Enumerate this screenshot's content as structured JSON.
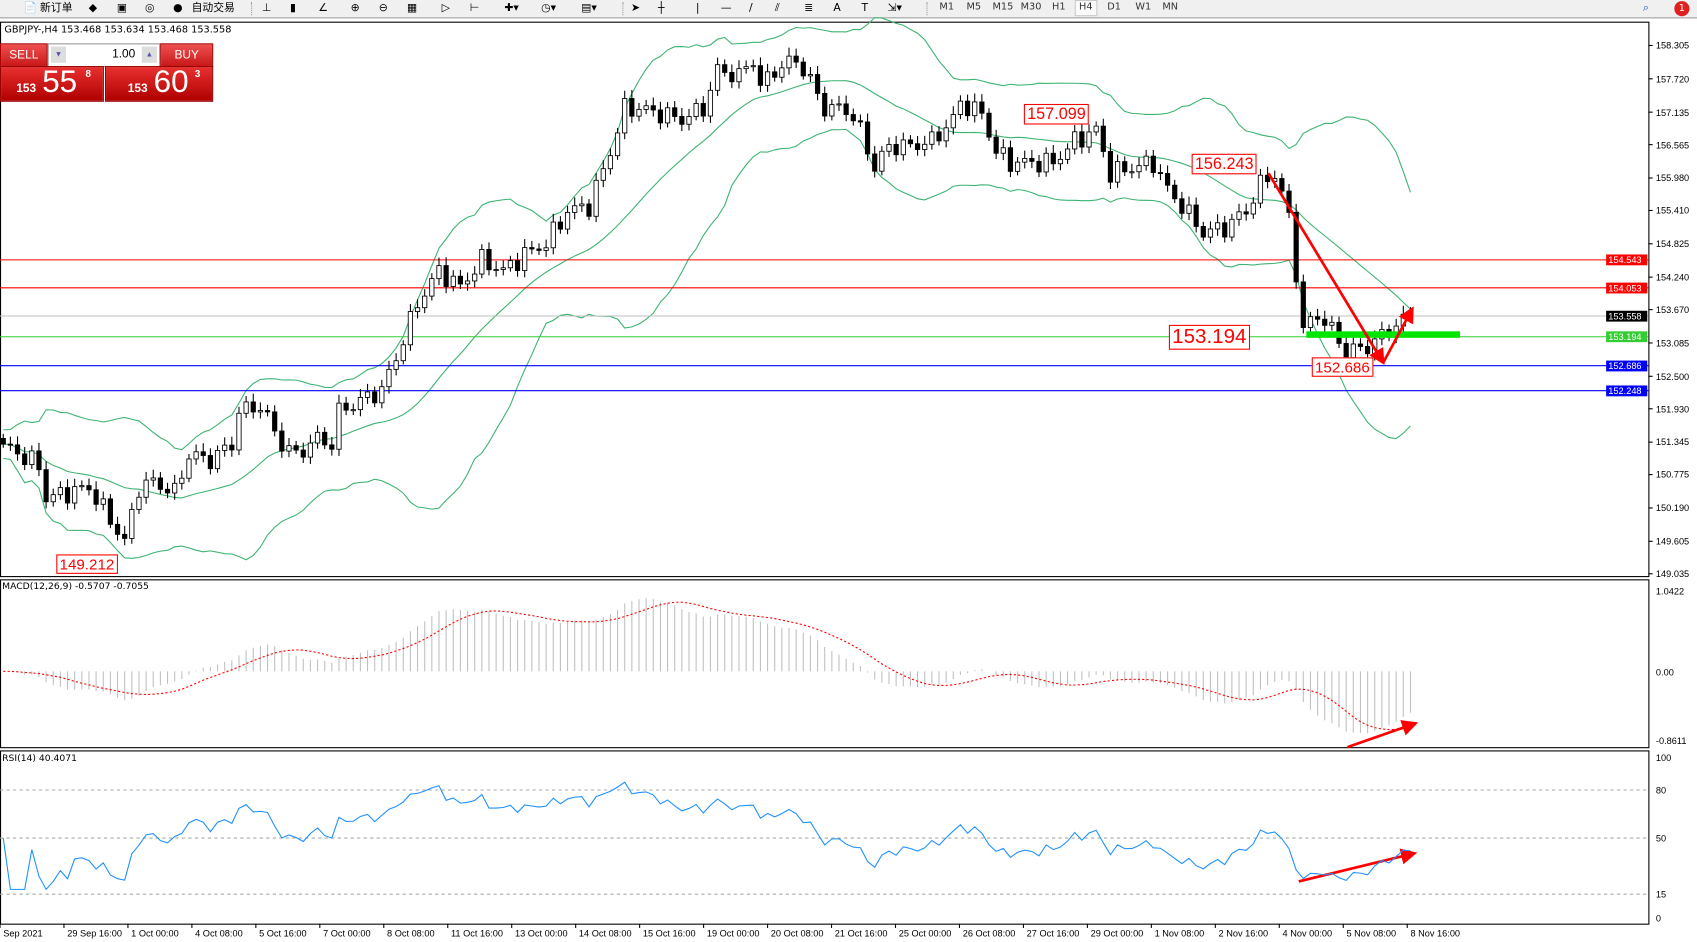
{
  "toolbar": {
    "new_order": "新订单",
    "auto_trading": "自动交易",
    "timeframes": [
      "M1",
      "M5",
      "M15",
      "M30",
      "H1",
      "H4",
      "D1",
      "W1",
      "MN"
    ],
    "active_timeframe": "H4",
    "notification_count": "1"
  },
  "chart": {
    "symbol_info": "GBPJPY-,H4  153.468 153.634 153.468 153.558"
  },
  "trade_panel": {
    "sell_label": "SELL",
    "buy_label": "BUY",
    "lot": "1.00",
    "bid_prefix": "153",
    "bid_big": "55",
    "bid_sup": "8",
    "ask_prefix": "153",
    "ask_big": "60",
    "ask_sup": "3"
  },
  "price_axis": [
    "158.305",
    "157.720",
    "157.135",
    "156.565",
    "155.980",
    "155.410",
    "154.825",
    "154.240",
    "153.670",
    "153.085",
    "152.500",
    "151.930",
    "151.345",
    "150.775",
    "150.190",
    "149.605",
    "149.035"
  ],
  "hlines": [
    {
      "price": 154.543,
      "label": "154.543",
      "color": "#ff0000"
    },
    {
      "price": 154.053,
      "label": "154.053",
      "color": "#ff0000"
    },
    {
      "price": 153.558,
      "label": "153.558",
      "color": "#000000",
      "line": "#c0c0c0"
    },
    {
      "price": 153.194,
      "label": "153.194",
      "color": "#32cd32"
    },
    {
      "price": 152.686,
      "label": "152.686",
      "color": "#0000ff"
    },
    {
      "price": 152.248,
      "label": "152.248",
      "color": "#0000ff"
    }
  ],
  "annotations": [
    "157.099",
    "156.243",
    "153.194",
    "152.686",
    "149.212"
  ],
  "time_axis": [
    "Sep 2021",
    "29 Sep 16:00",
    "1 Oct 00:00",
    "4 Oct 08:00",
    "5 Oct 16:00",
    "7 Oct 00:00",
    "8 Oct 08:00",
    "11 Oct 16:00",
    "13 Oct 00:00",
    "14 Oct 08:00",
    "15 Oct 16:00",
    "19 Oct 00:00",
    "20 Oct 08:00",
    "21 Oct 16:00",
    "25 Oct 00:00",
    "26 Oct 08:00",
    "27 Oct 16:00",
    "29 Oct 00:00",
    "1 Nov 08:00",
    "2 Nov 16:00",
    "4 Nov 00:00",
    "5 Nov 08:00",
    "8 Nov 16:00"
  ],
  "macd": {
    "label": "MACD(12,26,9) -0.5707 -0.7055",
    "axis": [
      "1.0422",
      "0.00",
      "-0.8611"
    ]
  },
  "rsi": {
    "label": "RSI(14) 40.4071",
    "axis": [
      "100",
      "80",
      "50",
      "15",
      "0"
    ]
  },
  "colors": {
    "bands": "#3cb371",
    "macd_signal": "#ff0000",
    "macd_hist": "#c0c0c0",
    "rsi": "#1e90ff",
    "arrows": "#ff0000",
    "support_zone": "#00e600"
  },
  "chart_data": {
    "type": "candlestick",
    "timeframe": "H4",
    "close_path": [
      [
        0,
        151.31
      ],
      [
        5,
        150.93
      ],
      [
        6,
        150.36
      ],
      [
        9,
        150.46
      ],
      [
        12,
        150.55
      ],
      [
        15,
        149.98
      ],
      [
        17,
        149.6
      ],
      [
        19,
        150.55
      ],
      [
        21,
        150.65
      ],
      [
        24,
        150.46
      ],
      [
        26,
        151.12
      ],
      [
        29,
        151.03
      ],
      [
        32,
        151.31
      ],
      [
        33,
        151.88
      ],
      [
        36,
        151.98
      ],
      [
        39,
        151.31
      ],
      [
        41,
        151.12
      ],
      [
        44,
        151.41
      ],
      [
        46,
        151.31
      ],
      [
        47,
        151.88
      ],
      [
        50,
        152.07
      ],
      [
        53,
        152.26
      ],
      [
        55,
        152.83
      ],
      [
        58,
        153.78
      ],
      [
        61,
        154.35
      ],
      [
        64,
        154.07
      ],
      [
        67,
        154.54
      ],
      [
        70,
        154.35
      ],
      [
        73,
        154.64
      ],
      [
        76,
        154.83
      ],
      [
        79,
        155.4
      ],
      [
        82,
        155.49
      ],
      [
        85,
        156.44
      ],
      [
        87,
        157.2
      ],
      [
        89,
        157.2
      ],
      [
        92,
        157.11
      ],
      [
        95,
        157.01
      ],
      [
        98,
        157.2
      ],
      [
        100,
        157.87
      ],
      [
        103,
        157.77
      ],
      [
        105,
        158.06
      ],
      [
        106,
        157.58
      ],
      [
        108,
        157.87
      ],
      [
        111,
        158.06
      ],
      [
        113,
        157.68
      ],
      [
        115,
        157.2
      ],
      [
        118,
        157.2
      ],
      [
        120,
        156.82
      ],
      [
        122,
        156.16
      ],
      [
        124,
        156.54
      ],
      [
        127,
        156.54
      ],
      [
        130,
        156.63
      ],
      [
        133,
        157.01
      ],
      [
        134,
        157.3
      ],
      [
        137,
        157.11
      ],
      [
        139,
        156.44
      ],
      [
        141,
        156.25
      ],
      [
        144,
        156.25
      ],
      [
        147,
        156.25
      ],
      [
        150,
        156.63
      ],
      [
        153,
        156.82
      ],
      [
        155,
        156.06
      ],
      [
        158,
        156.16
      ],
      [
        161,
        156.25
      ],
      [
        163,
        155.78
      ],
      [
        165,
        155.49
      ],
      [
        168,
        155.02
      ],
      [
        171,
        155.11
      ],
      [
        174,
        155.4
      ],
      [
        176,
        155.87
      ],
      [
        178,
        156.06
      ],
      [
        180,
        155.3
      ],
      [
        182,
        153.31
      ],
      [
        184,
        153.59
      ],
      [
        186,
        153.31
      ],
      [
        188,
        152.93
      ],
      [
        191,
        153.02
      ],
      [
        194,
        153.31
      ],
      [
        197,
        153.56
      ]
    ]
  }
}
